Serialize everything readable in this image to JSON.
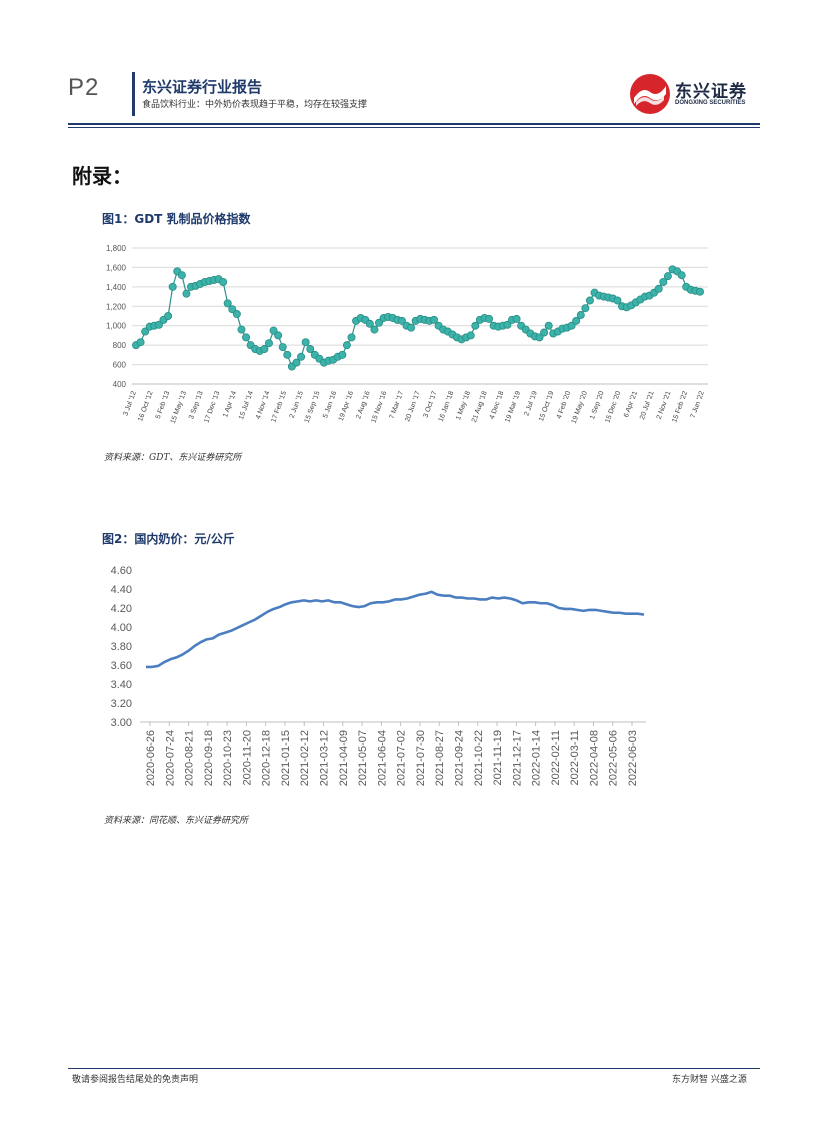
{
  "header": {
    "page_number": "P2",
    "report_title": "东兴证券行业报告",
    "report_subtitle": "食品饮料行业：中外奶价表现趋于平稳，均存在较强支撑",
    "logo_cn": "东兴证券",
    "logo_en": "DONGXING SECURITIES"
  },
  "section_title": "附录：",
  "figures": [
    {
      "title": "图1：GDT  乳制品价格指数",
      "source": "资料来源：GDT、东兴证券研究所"
    },
    {
      "title": "图2：国内奶价：元/公斤",
      "source": "资料来源：同花顺、东兴证券研究所"
    }
  ],
  "footer": {
    "left": "敬请参阅报告结尾处的免责声明",
    "right": "东方财智 兴盛之源"
  },
  "colors": {
    "brand": "#1f3a6b",
    "logo_red": "#d7262b",
    "chart1_marker": "#3bb3aa",
    "chart2_line": "#4a7ec0"
  },
  "chart_data": [
    {
      "type": "scatter",
      "title": "GDT 乳制品价格指数",
      "ylim": [
        400,
        1800
      ],
      "yticks": [
        "1,800",
        "1,600",
        "1,400",
        "1,200",
        "1,000",
        "800",
        "600",
        "400"
      ],
      "ytick_values": [
        1800,
        1600,
        1400,
        1200,
        1000,
        800,
        600,
        400
      ],
      "categories": [
        "3 Jul '12",
        "16 Oct '12",
        "5 Feb '13",
        "15 May '13",
        "3 Sep '13",
        "17 Dec '13",
        "1 Apr '14",
        "15 Jul '14",
        "4 Nov '14",
        "17 Feb '15",
        "2 Jun '15",
        "15 Sep '15",
        "5 Jan '16",
        "19 Apr '16",
        "2 Aug '16",
        "15 Nov '16",
        "7 Mar '17",
        "20 Jun '17",
        "3 Oct '17",
        "16 Jan '18",
        "1 May '18",
        "21 Aug '18",
        "4 Dec '18",
        "19 Mar '19",
        "2 Jul '19",
        "15 Oct '19",
        "4 Feb '20",
        "19 May '20",
        "1 Sep '20",
        "15 Dec '20",
        "6 Apr '21",
        "20 Jul '21",
        "2 Nov '21",
        "15 Feb '22",
        "7 Jun '22"
      ],
      "values": [
        800,
        830,
        940,
        990,
        1000,
        1010,
        1060,
        1100,
        1400,
        1560,
        1520,
        1330,
        1400,
        1410,
        1430,
        1450,
        1460,
        1470,
        1480,
        1450,
        1230,
        1170,
        1120,
        960,
        880,
        800,
        760,
        740,
        760,
        820,
        950,
        900,
        780,
        700,
        580,
        620,
        680,
        830,
        760,
        700,
        660,
        620,
        640,
        650,
        680,
        700,
        800,
        880,
        1050,
        1080,
        1060,
        1020,
        960,
        1030,
        1080,
        1090,
        1080,
        1060,
        1050,
        1000,
        980,
        1050,
        1070,
        1060,
        1050,
        1060,
        1000,
        960,
        940,
        910,
        880,
        860,
        880,
        900,
        1000,
        1060,
        1080,
        1070,
        1000,
        990,
        1000,
        1010,
        1060,
        1070,
        1000,
        960,
        920,
        890,
        880,
        930,
        1000,
        920,
        940,
        970,
        980,
        1000,
        1050,
        1110,
        1180,
        1260,
        1340,
        1310,
        1300,
        1290,
        1280,
        1260,
        1200,
        1190,
        1210,
        1240,
        1270,
        1300,
        1310,
        1340,
        1380,
        1450,
        1510,
        1580,
        1560,
        1520,
        1400,
        1370,
        1360,
        1350
      ]
    },
    {
      "type": "line",
      "title": "国内奶价：元/公斤",
      "ylim": [
        3.0,
        4.6
      ],
      "yticks": [
        "4.60",
        "4.40",
        "4.20",
        "4.00",
        "3.80",
        "3.60",
        "3.40",
        "3.20",
        "3.00"
      ],
      "ytick_values": [
        4.6,
        4.4,
        4.2,
        4.0,
        3.8,
        3.6,
        3.4,
        3.2,
        3.0
      ],
      "x_labels": [
        "2020-06-26",
        "2020-07-24",
        "2020-08-21",
        "2020-09-18",
        "2020-10-23",
        "2020-11-20",
        "2020-12-18",
        "2021-01-15",
        "2021-02-12",
        "2021-03-12",
        "2021-04-09",
        "2021-05-07",
        "2021-06-04",
        "2021-07-02",
        "2021-07-30",
        "2021-08-27",
        "2021-09-24",
        "2021-10-22",
        "2021-11-19",
        "2021-12-17",
        "2022-01-14",
        "2022-02-11",
        "2022-03-11",
        "2022-04-08",
        "2022-05-06",
        "2022-06-03"
      ],
      "values": [
        3.58,
        3.58,
        3.59,
        3.63,
        3.66,
        3.68,
        3.71,
        3.75,
        3.8,
        3.84,
        3.87,
        3.88,
        3.92,
        3.94,
        3.96,
        3.99,
        4.02,
        4.05,
        4.08,
        4.12,
        4.16,
        4.19,
        4.21,
        4.24,
        4.26,
        4.27,
        4.28,
        4.27,
        4.28,
        4.27,
        4.28,
        4.26,
        4.26,
        4.24,
        4.22,
        4.21,
        4.22,
        4.25,
        4.26,
        4.26,
        4.27,
        4.29,
        4.29,
        4.3,
        4.32,
        4.34,
        4.35,
        4.37,
        4.34,
        4.33,
        4.33,
        4.31,
        4.31,
        4.3,
        4.3,
        4.29,
        4.29,
        4.31,
        4.3,
        4.31,
        4.3,
        4.28,
        4.25,
        4.26,
        4.26,
        4.25,
        4.25,
        4.23,
        4.2,
        4.19,
        4.19,
        4.18,
        4.17,
        4.18,
        4.18,
        4.17,
        4.16,
        4.15,
        4.15,
        4.14,
        4.14,
        4.14,
        4.13
      ]
    }
  ]
}
